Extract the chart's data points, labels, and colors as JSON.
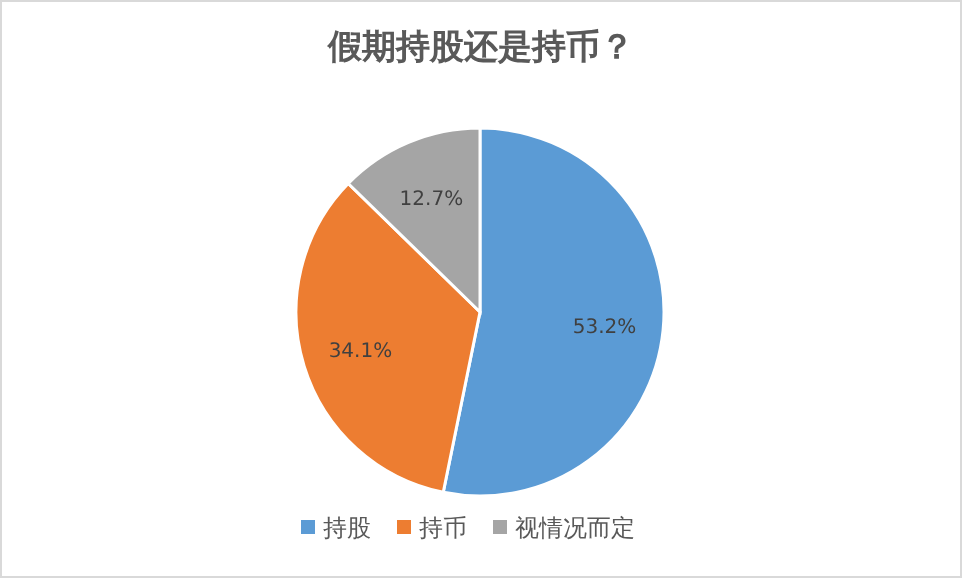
{
  "chart_data": {
    "type": "pie",
    "title": "假期持股还是持币？",
    "categories": [
      "持股",
      "持币",
      "视情况而定"
    ],
    "values": [
      53.2,
      34.1,
      12.7
    ],
    "colors": [
      "#5b9bd5",
      "#ed7d31",
      "#a5a5a5"
    ],
    "value_labels": [
      "53.2%",
      "34.1%",
      "12.7%"
    ],
    "legend": "bottom"
  }
}
